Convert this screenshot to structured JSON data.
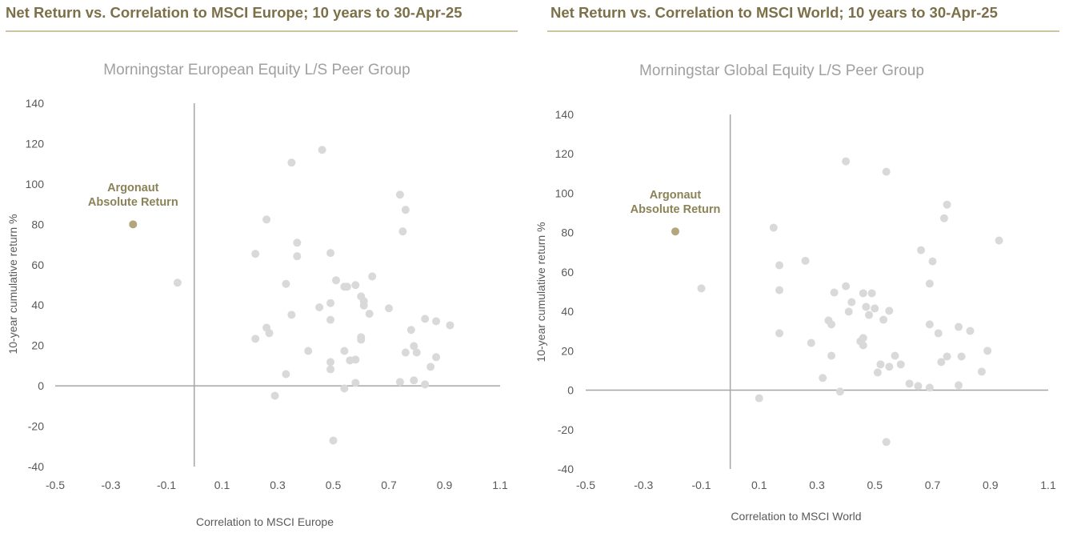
{
  "headers": [
    "Net Return vs. Correlation to MSCI Europe; 10 years to 30-Apr-25",
    "Net Return vs. Correlation to MSCI World; 10 years to 30-Apr-25"
  ],
  "colors": {
    "header": "#7b7048",
    "rule": "#cdc4a4",
    "peer": "#d9d9d9",
    "highlight": "#b3a67c",
    "axis": "#a6a6a6"
  },
  "chart_data": [
    {
      "type": "scatter",
      "title": "Morningstar European Equity L/S Peer Group",
      "xlabel": "Correlation to MSCI Europe",
      "ylabel": "10-year cumulative return %",
      "xlim": [
        -0.5,
        1.1
      ],
      "ylim": [
        -40,
        140
      ],
      "xticks": [
        "-0.5",
        "-0.3",
        "-0.1",
        "0.1",
        "0.3",
        "0.5",
        "0.7",
        "0.9",
        "1.1"
      ],
      "yticks": [
        "140",
        "120",
        "100",
        "80",
        "60",
        "40",
        "20",
        "0",
        "-20",
        "-40"
      ],
      "grid": false,
      "highlight": {
        "name_line1": "Argonaut",
        "name_line2": "Absolute Return",
        "x": -0.22,
        "y": 80
      },
      "points": [
        [
          0.46,
          116.9
        ],
        [
          0.35,
          110.6
        ],
        [
          0.74,
          94.7
        ],
        [
          0.76,
          87.2
        ],
        [
          0.75,
          76.5
        ],
        [
          0.26,
          82.4
        ],
        [
          0.37,
          70.9
        ],
        [
          0.22,
          65.4
        ],
        [
          0.37,
          64.2
        ],
        [
          0.49,
          65.8
        ],
        [
          -0.06,
          51.1
        ],
        [
          0.33,
          50.5
        ],
        [
          0.51,
          52.3
        ],
        [
          0.64,
          54.2
        ],
        [
          0.54,
          49.1
        ],
        [
          0.55,
          49.1
        ],
        [
          0.58,
          49.9
        ],
        [
          0.6,
          44.3
        ],
        [
          0.61,
          41.9
        ],
        [
          0.61,
          39.8
        ],
        [
          0.63,
          35.7
        ],
        [
          0.7,
          38.4
        ],
        [
          0.45,
          38.9
        ],
        [
          0.49,
          41.0
        ],
        [
          0.35,
          35.2
        ],
        [
          0.49,
          32.7
        ],
        [
          0.83,
          33.2
        ],
        [
          0.87,
          32.0
        ],
        [
          0.92,
          30.0
        ],
        [
          0.78,
          27.7
        ],
        [
          0.26,
          28.8
        ],
        [
          0.27,
          26.1
        ],
        [
          0.22,
          23.3
        ],
        [
          0.6,
          24.1
        ],
        [
          0.6,
          22.9
        ],
        [
          0.79,
          19.7
        ],
        [
          0.76,
          16.5
        ],
        [
          0.8,
          16.5
        ],
        [
          0.87,
          14.2
        ],
        [
          0.85,
          9.4
        ],
        [
          0.41,
          17.3
        ],
        [
          0.54,
          17.3
        ],
        [
          0.56,
          12.6
        ],
        [
          0.58,
          13.0
        ],
        [
          0.49,
          11.8
        ],
        [
          0.49,
          8.2
        ],
        [
          0.33,
          5.8
        ],
        [
          0.58,
          1.5
        ],
        [
          0.74,
          1.9
        ],
        [
          0.79,
          2.7
        ],
        [
          0.83,
          0.7
        ],
        [
          0.54,
          -1.3
        ],
        [
          0.29,
          -4.9
        ],
        [
          0.5,
          -27.1
        ]
      ]
    },
    {
      "type": "scatter",
      "title": "Morningstar Global Equity L/S Peer Group",
      "xlabel": "Correlation to MSCI World",
      "ylabel": "10-year cumulative return %",
      "xlim": [
        -0.5,
        1.1
      ],
      "ylim": [
        -40,
        140
      ],
      "xticks": [
        "-0.5",
        "-0.3",
        "-0.1",
        "0.1",
        "0.3",
        "0.5",
        "0.7",
        "0.9",
        "1.1"
      ],
      "yticks": [
        "140",
        "120",
        "100",
        "80",
        "60",
        "40",
        "20",
        "0",
        "-20",
        "-40"
      ],
      "grid": false,
      "highlight": {
        "name_line1": "Argonaut",
        "name_line2": "Absolute Return",
        "x": -0.19,
        "y": 80.6
      },
      "points": [
        [
          0.4,
          116.2
        ],
        [
          0.54,
          110.9
        ],
        [
          0.75,
          94.2
        ],
        [
          0.74,
          87.3
        ],
        [
          0.93,
          76.0
        ],
        [
          0.15,
          82.5
        ],
        [
          0.66,
          71.1
        ],
        [
          0.7,
          65.4
        ],
        [
          0.26,
          65.7
        ],
        [
          0.17,
          63.4
        ],
        [
          0.69,
          54.1
        ],
        [
          0.17,
          50.8
        ],
        [
          0.4,
          52.8
        ],
        [
          0.36,
          49.6
        ],
        [
          0.46,
          49.2
        ],
        [
          0.49,
          49.2
        ],
        [
          0.42,
          44.7
        ],
        [
          0.47,
          42.3
        ],
        [
          0.5,
          41.5
        ],
        [
          0.55,
          40.3
        ],
        [
          0.41,
          39.9
        ],
        [
          0.48,
          38.2
        ],
        [
          0.53,
          35.8
        ],
        [
          0.34,
          35.4
        ],
        [
          0.35,
          33.4
        ],
        [
          0.69,
          33.4
        ],
        [
          0.79,
          32.1
        ],
        [
          0.83,
          30.1
        ],
        [
          0.72,
          28.9
        ],
        [
          0.17,
          28.9
        ],
        [
          0.28,
          24.0
        ],
        [
          0.45,
          24.8
        ],
        [
          0.46,
          26.5
        ],
        [
          0.46,
          22.8
        ],
        [
          0.89,
          20.0
        ],
        [
          0.35,
          17.5
        ],
        [
          0.57,
          17.5
        ],
        [
          0.75,
          17.1
        ],
        [
          0.8,
          17.1
        ],
        [
          0.73,
          14.3
        ],
        [
          0.52,
          13.1
        ],
        [
          0.55,
          11.9
        ],
        [
          0.59,
          13.1
        ],
        [
          0.51,
          9.0
        ],
        [
          0.87,
          9.4
        ],
        [
          0.32,
          6.2
        ],
        [
          0.62,
          3.3
        ],
        [
          0.65,
          2.1
        ],
        [
          0.69,
          1.3
        ],
        [
          0.79,
          2.5
        ],
        [
          0.38,
          -0.7
        ],
        [
          0.1,
          -4.1
        ],
        [
          0.54,
          -26.3
        ],
        [
          -0.1,
          51.7
        ]
      ]
    }
  ]
}
